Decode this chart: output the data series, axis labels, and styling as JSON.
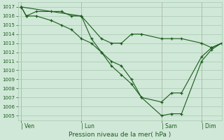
{
  "background_color": "#d0e8d8",
  "grid_color": "#a8c8b0",
  "line_color": "#1a5c1a",
  "title": "Pression niveau de la mer( hPa )",
  "ylim": [
    1004.5,
    1017.5
  ],
  "yticks": [
    1005,
    1006,
    1007,
    1008,
    1009,
    1010,
    1011,
    1012,
    1013,
    1014,
    1015,
    1016,
    1017
  ],
  "xtick_labels": [
    "| Ven",
    "| Lun",
    "| Sam",
    "| Dim"
  ],
  "xtick_positions": [
    0,
    36,
    84,
    108
  ],
  "xlim": [
    -2,
    120
  ],
  "vline_color": "#c09090",
  "vline_positions": [
    0,
    36,
    84,
    108
  ],
  "series1_x": [
    0,
    3,
    9,
    18,
    24,
    30,
    36,
    42,
    48,
    54,
    60,
    66,
    72,
    84,
    90,
    96,
    108,
    114,
    120
  ],
  "series1_y": [
    1017,
    1016,
    1016.5,
    1016.5,
    1016.5,
    1016,
    1016,
    1013.5,
    1012,
    1011,
    1010.5,
    1009,
    1007,
    1005,
    1005.2,
    1005.2,
    1011,
    1012.3,
    1013
  ],
  "series2_x": [
    0,
    3,
    9,
    18,
    24,
    30,
    36,
    42,
    48,
    54,
    60,
    66,
    72,
    84,
    90,
    96,
    108,
    114,
    120
  ],
  "series2_y": [
    1017,
    1016,
    1016,
    1015.5,
    1015,
    1014.5,
    1013.5,
    1013,
    1012,
    1010.5,
    1009.5,
    1008.5,
    1007,
    1006.5,
    1007.5,
    1007.5,
    1011.5,
    1012.5,
    1013
  ],
  "series3_x": [
    0,
    36,
    48,
    54,
    60,
    66,
    72,
    84,
    90,
    96,
    108,
    114,
    120
  ],
  "series3_y": [
    1017,
    1016,
    1013.5,
    1013,
    1013,
    1014,
    1014,
    1013.5,
    1013.5,
    1013.5,
    1013,
    1012.5,
    1013
  ]
}
